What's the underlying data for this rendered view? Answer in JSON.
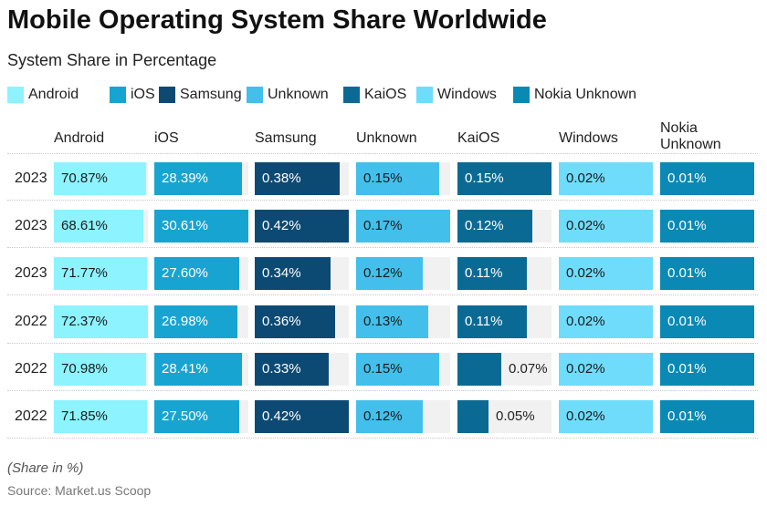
{
  "title": "Mobile Operating System Share Worldwide",
  "subtitle": "System Share in Percentage",
  "footnote": "(Share in %)",
  "source": "Source: Market.us Scoop",
  "chart_data": {
    "type": "table",
    "title": "Mobile Operating System Share Worldwide",
    "subtitle": "System Share in Percentage",
    "columns": [
      {
        "name": "Android",
        "header": "Android",
        "color": "#8CF3FF",
        "dark_text": true
      },
      {
        "name": "iOS",
        "header": "iOS",
        "color": "#18A4D0",
        "dark_text": false
      },
      {
        "name": "Samsung",
        "header": "Samsung",
        "color": "#0D4A73",
        "dark_text": false
      },
      {
        "name": "Unknown",
        "header": "Unknown",
        "color": "#43BFEB",
        "dark_text": true
      },
      {
        "name": "KaiOS",
        "header": "KaiOS",
        "color": "#0B6A93",
        "dark_text": false
      },
      {
        "name": "Windows",
        "header": "Windows",
        "color": "#6FDCFB",
        "dark_text": true
      },
      {
        "name": "Nokia Unknown",
        "header": "Nokia\nUnknown",
        "color": "#0A89B4",
        "dark_text": false
      }
    ],
    "rows": [
      {
        "label": "2023",
        "values": [
          70.87,
          28.39,
          0.38,
          0.15,
          0.15,
          0.02,
          0.01
        ],
        "labels": [
          "70.87%",
          "28.39%",
          "0.38%",
          "0.15%",
          "0.15%",
          "0.02%",
          "0.01%"
        ]
      },
      {
        "label": "2023",
        "values": [
          68.61,
          30.61,
          0.42,
          0.17,
          0.12,
          0.02,
          0.01
        ],
        "labels": [
          "68.61%",
          "30.61%",
          "0.42%",
          "0.17%",
          "0.12%",
          "0.02%",
          "0.01%"
        ]
      },
      {
        "label": "2023",
        "values": [
          71.77,
          27.6,
          0.34,
          0.12,
          0.11,
          0.02,
          0.01
        ],
        "labels": [
          "71.77%",
          "27.60%",
          "0.34%",
          "0.12%",
          "0.11%",
          "0.02%",
          "0.01%"
        ]
      },
      {
        "label": "2022",
        "values": [
          72.37,
          26.98,
          0.36,
          0.13,
          0.11,
          0.02,
          0.01
        ],
        "labels": [
          "72.37%",
          "26.98%",
          "0.36%",
          "0.13%",
          "0.11%",
          "0.02%",
          "0.01%"
        ]
      },
      {
        "label": "2022",
        "values": [
          70.98,
          28.41,
          0.33,
          0.15,
          0.07,
          0.02,
          0.01
        ],
        "labels": [
          "70.98%",
          "28.41%",
          "0.33%",
          "0.15%",
          "0.07%",
          "0.02%",
          "0.01%"
        ]
      },
      {
        "label": "2022",
        "values": [
          71.85,
          27.5,
          0.42,
          0.12,
          0.05,
          0.02,
          0.01
        ],
        "labels": [
          "71.85%",
          "27.50%",
          "0.42%",
          "0.12%",
          "0.05%",
          "0.02%",
          "0.01%"
        ]
      }
    ],
    "bar_fill_rule": "each bar is scaled relative to the largest value in its column",
    "legend_position": "top"
  }
}
